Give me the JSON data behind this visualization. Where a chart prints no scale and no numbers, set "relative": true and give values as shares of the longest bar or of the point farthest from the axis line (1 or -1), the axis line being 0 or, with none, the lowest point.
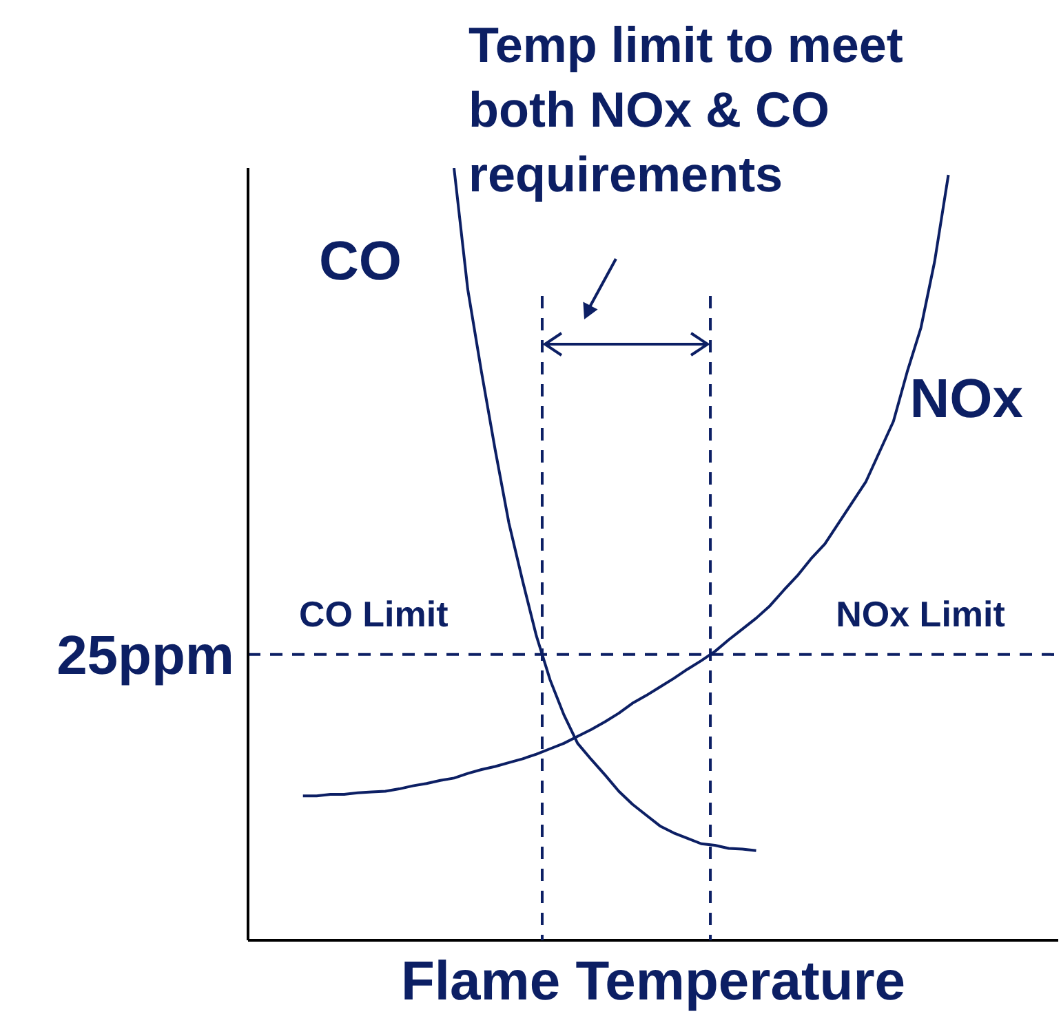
{
  "chart_data": {
    "type": "line",
    "relative": true,
    "xlabel": "Flame Temperature",
    "grid": false,
    "legend": false,
    "marker": "none",
    "line_style": "solid",
    "categories": [
      null,
      null,
      null,
      null,
      null,
      null,
      null,
      null,
      null,
      null,
      null,
      null,
      null,
      null,
      null,
      null,
      null,
      null,
      null,
      null,
      null,
      null,
      null,
      null,
      null,
      null,
      null,
      null,
      null,
      null,
      null,
      null,
      null,
      null,
      null,
      null,
      null,
      null,
      null,
      null,
      null,
      null,
      null,
      null,
      null,
      null,
      null,
      null,
      null,
      null,
      null,
      null,
      null,
      null,
      null,
      null,
      null,
      null,
      null,
      null
    ],
    "series": [
      {
        "name": "CO",
        "color": "#0c1f64",
        "values": [
          null,
          null,
          null,
          null,
          null,
          null,
          null,
          null,
          null,
          null,
          null,
          null,
          null,
          null,
          null,
          1.0,
          0.843,
          0.736,
          0.635,
          0.54,
          0.465,
          0.394,
          0.337,
          0.292,
          0.255,
          0.234,
          0.214,
          0.193,
          0.176,
          0.162,
          0.148,
          0.139,
          0.132,
          0.125,
          0.123,
          0.119,
          0.118,
          0.116,
          null,
          null,
          null,
          null,
          null,
          null,
          null,
          null,
          null,
          null,
          null,
          null,
          null,
          null,
          null,
          null,
          null,
          null,
          null,
          null,
          null,
          null
        ]
      },
      {
        "name": "NOx",
        "color": "#0c1f64",
        "values": [
          null,
          null,
          null,
          null,
          0.187,
          0.187,
          0.189,
          0.189,
          0.191,
          0.192,
          0.193,
          0.196,
          0.2,
          0.203,
          0.207,
          0.21,
          0.216,
          0.221,
          0.225,
          0.23,
          0.235,
          0.241,
          0.248,
          0.255,
          0.264,
          0.273,
          0.283,
          0.294,
          0.307,
          0.317,
          0.328,
          0.339,
          0.351,
          0.362,
          0.374,
          0.389,
          0.403,
          0.417,
          0.433,
          0.453,
          0.472,
          0.494,
          0.513,
          0.54,
          0.567,
          0.594,
          0.633,
          0.672,
          0.736,
          0.793,
          0.879,
          0.991,
          null,
          null,
          null,
          null,
          null,
          null,
          null,
          null
        ]
      }
    ],
    "ref_lines": [
      {
        "axis": "y",
        "value": 0.37,
        "label": "25ppm",
        "color": "#0c1f64",
        "line_style": "dashed"
      }
    ],
    "annotations": [
      "Temp limit to meet both NOx & CO requirements",
      "CO Limit",
      "NOx Limit"
    ]
  }
}
